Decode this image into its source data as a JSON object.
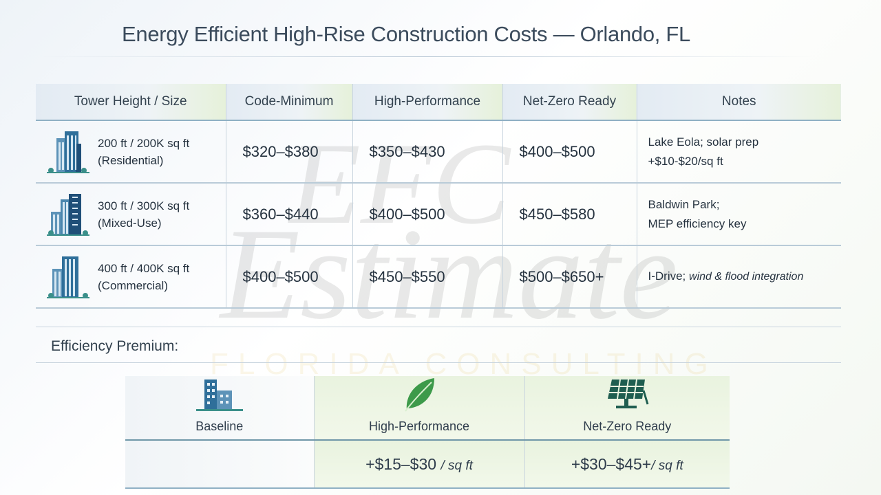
{
  "title": "Energy Efficient High-Rise Construction Costs — Orlando, FL",
  "watermark": {
    "monogram": "EFC",
    "word": "Estimate",
    "tagline": "FLORIDA CONSULTING"
  },
  "table": {
    "headers": [
      "Tower Height / Size",
      "Code-Minimum",
      "High-Performance",
      "Net-Zero Ready",
      "Notes"
    ],
    "rows": [
      {
        "size": "200 ft / 200K sq ft",
        "type": "(Residential)",
        "code_min": "$320–$380",
        "high_perf": "$350–$430",
        "net_zero": "$400–$500",
        "notes_1": "Lake Eola; solar prep",
        "notes_2": "+$10-$20/sq ft",
        "icon": "building-icon"
      },
      {
        "size": "300 ft / 300K sq ft",
        "type": "(Mixed-Use)",
        "code_min": "$360–$440",
        "high_perf": "$400–$500",
        "net_zero": "$450–$580",
        "notes_1": "Baldwin Park;",
        "notes_2": "MEP efficiency key",
        "icon": "building-icon"
      },
      {
        "size": "400 ft / 400K sq ft",
        "type": "(Commercial)",
        "code_min": "$400–$500",
        "high_perf": "$450–$550",
        "net_zero": "$500–$650+",
        "notes_1": "I-Drive;",
        "notes_2": "wind & flood integration",
        "icon": "building-icon"
      }
    ]
  },
  "premium": {
    "label": "Efficiency Premium:",
    "columns": [
      {
        "label": "Baseline",
        "icon": "buildings-icon",
        "value": ""
      },
      {
        "label": "High-Performance",
        "icon": "leaf-icon",
        "value": "+$15–$30",
        "unit": "/ sq ft"
      },
      {
        "label": "Net-Zero Ready",
        "icon": "solar-panel-icon",
        "value": "+$30–$45+",
        "unit": "/ sq ft"
      }
    ]
  },
  "colors": {
    "accent_blue": "#2f6f9a",
    "accent_green": "#3d9a4a",
    "solar_teal": "#1f5e50"
  }
}
